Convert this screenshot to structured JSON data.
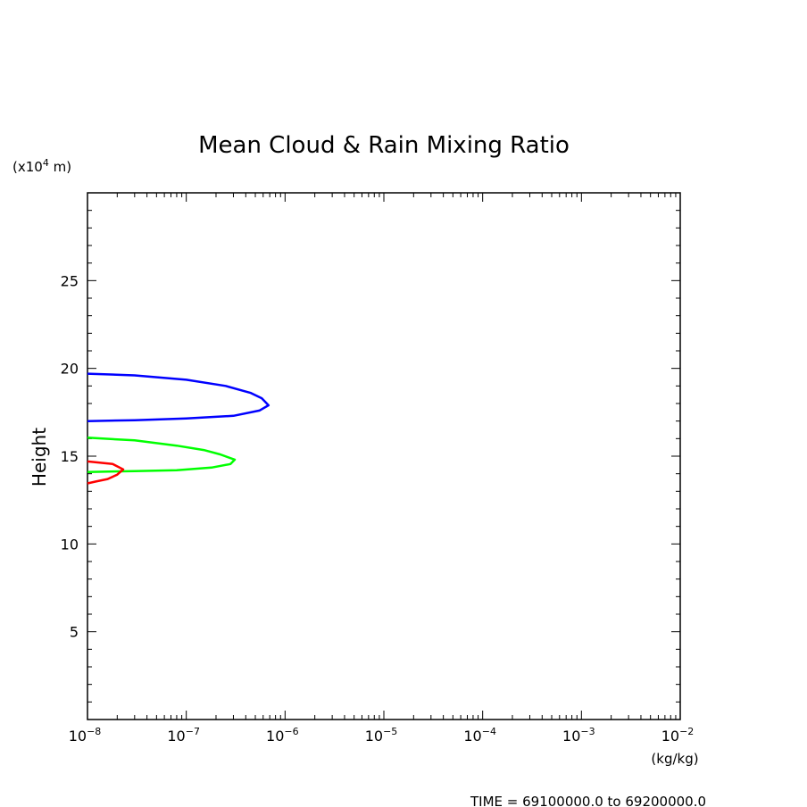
{
  "chart_data": {
    "type": "line",
    "title": "Mean Cloud & Rain Mixing Ratio",
    "ylabel": "Height",
    "yunit": "(x10",
    "yunit_exp": "4",
    "yunit_tail": " m)",
    "xunit": "(kg/kg)",
    "footer": "TIME = 69100000.0 to 69200000.0",
    "xscale": "log",
    "xlim": [
      1e-08,
      0.01
    ],
    "ylim": [
      0,
      30
    ],
    "grid": false,
    "x_ticks": [
      {
        "base": "10",
        "exp": "−8"
      },
      {
        "base": "10",
        "exp": "−7"
      },
      {
        "base": "10",
        "exp": "−6"
      },
      {
        "base": "10",
        "exp": "−5"
      },
      {
        "base": "10",
        "exp": "−4"
      },
      {
        "base": "10",
        "exp": "−3"
      },
      {
        "base": "10",
        "exp": "−2"
      }
    ],
    "y_ticks": [
      "5",
      "10",
      "15",
      "20",
      "25"
    ],
    "series": [
      {
        "color": "#0000ff",
        "points": [
          [
            1e-08,
            19.7
          ],
          [
            3e-08,
            19.6
          ],
          [
            1e-07,
            19.35
          ],
          [
            2.5e-07,
            19.0
          ],
          [
            4.5e-07,
            18.6
          ],
          [
            5.8e-07,
            18.3
          ],
          [
            6.8e-07,
            17.9
          ],
          [
            5.5e-07,
            17.6
          ],
          [
            3e-07,
            17.3
          ],
          [
            1e-07,
            17.15
          ],
          [
            3e-08,
            17.05
          ],
          [
            1e-08,
            17.0
          ]
        ]
      },
      {
        "color": "#00ff00",
        "points": [
          [
            1e-08,
            16.05
          ],
          [
            3e-08,
            15.9
          ],
          [
            8e-08,
            15.6
          ],
          [
            1.5e-07,
            15.35
          ],
          [
            2.2e-07,
            15.1
          ],
          [
            3.1e-07,
            14.8
          ],
          [
            2.8e-07,
            14.55
          ],
          [
            1.8e-07,
            14.35
          ],
          [
            8e-08,
            14.2
          ],
          [
            3e-08,
            14.15
          ],
          [
            1e-08,
            14.1
          ]
        ]
      },
      {
        "color": "#ff0000",
        "points": [
          [
            1e-08,
            14.7
          ],
          [
            1.8e-08,
            14.55
          ],
          [
            2.3e-08,
            14.25
          ],
          [
            2e-08,
            13.95
          ],
          [
            1.6e-08,
            13.7
          ],
          [
            1.2e-08,
            13.55
          ],
          [
            1e-08,
            13.45
          ]
        ]
      }
    ]
  }
}
